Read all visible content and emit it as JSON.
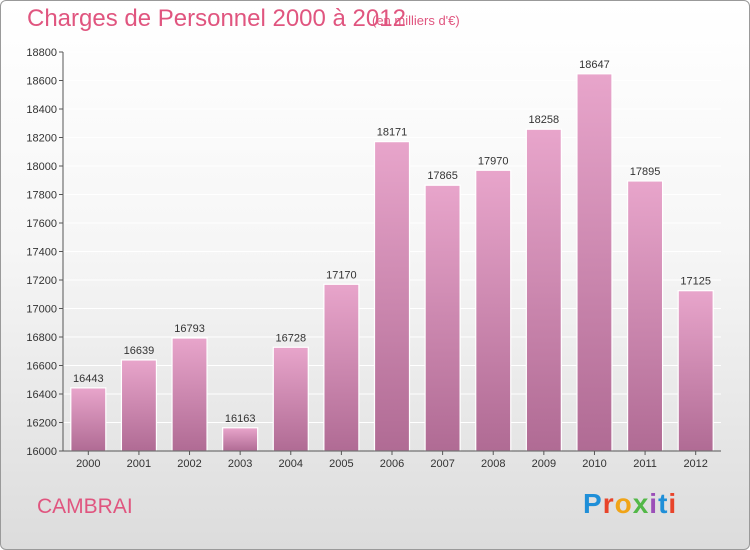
{
  "header": {
    "title": "Charges de Personnel 2000 à 2012",
    "subtitle": "(en milliers d'€)"
  },
  "footer": {
    "city": "CAMBRAI",
    "logo_text": "Proxiti"
  },
  "colors": {
    "title": "#e0557f",
    "bar_top": "#e8a5cb",
    "bar_bottom": "#b06b94",
    "logo": [
      "#1f8fd8",
      "#e8442a",
      "#f0a418",
      "#53b848",
      "#9b4fb8",
      "#1f8fd8",
      "#e8442a"
    ]
  },
  "chart_data": {
    "type": "bar",
    "categories": [
      "2000",
      "2001",
      "2002",
      "2003",
      "2004",
      "2005",
      "2006",
      "2007",
      "2008",
      "2009",
      "2010",
      "2011",
      "2012"
    ],
    "values": [
      16443,
      16639,
      16793,
      16163,
      16728,
      17170,
      18171,
      17865,
      17970,
      18258,
      18647,
      17895,
      17125
    ],
    "title": "Charges de Personnel 2000 à 2012",
    "subtitle": "(en milliers d'€)",
    "xlabel": "",
    "ylabel": "",
    "ylim": [
      16000,
      18800
    ],
    "yticks": [
      16000,
      16200,
      16400,
      16600,
      16800,
      17000,
      17200,
      17400,
      17600,
      17800,
      18000,
      18200,
      18400,
      18600,
      18800
    ],
    "grid": "y",
    "data_labels": true
  }
}
